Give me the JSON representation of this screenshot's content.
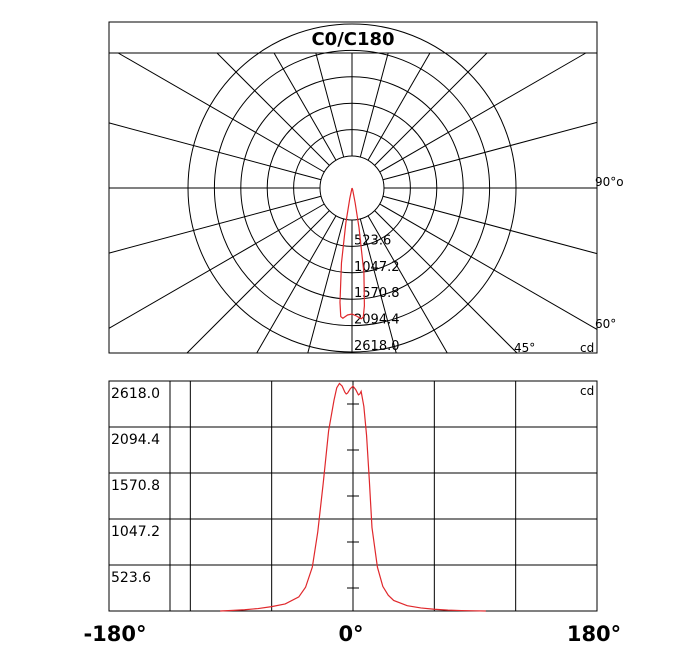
{
  "chart_data": [
    {
      "type": "polar",
      "title": "C0/C180",
      "unit": "cd",
      "radial_ticks": [
        523.6,
        1047.2,
        1570.8,
        2094.4,
        2618.0
      ],
      "radial_tick_labels": [
        "523.6",
        "1047.2",
        "1570.8",
        "2094.4",
        "2618.0"
      ],
      "rmax": 2618.0,
      "angle_labels": [
        "90°o",
        "60°",
        "45°"
      ],
      "angle_step_deg": 15,
      "series": [
        {
          "color": "#e0282c",
          "points": [
            {
              "angle": -12,
              "intensity": 210
            },
            {
              "angle": -10,
              "intensity": 700
            },
            {
              "angle": -8,
              "intensity": 1500
            },
            {
              "angle": -6,
              "intensity": 2280
            },
            {
              "angle": -5,
              "intensity": 2560
            },
            {
              "angle": -4,
              "intensity": 2590
            },
            {
              "angle": -2,
              "intensity": 2520
            },
            {
              "angle": 0,
              "intensity": 2500
            },
            {
              "angle": 2,
              "intensity": 2540
            },
            {
              "angle": 4,
              "intensity": 2600
            },
            {
              "angle": 5,
              "intensity": 2570
            },
            {
              "angle": 6,
              "intensity": 2350
            },
            {
              "angle": 8,
              "intensity": 1700
            },
            {
              "angle": 10,
              "intensity": 800
            },
            {
              "angle": 12,
              "intensity": 300
            },
            {
              "angle": 15,
              "intensity": 90
            },
            {
              "angle": 20,
              "intensity": 40
            },
            {
              "angle": 30,
              "intensity": 10
            }
          ]
        }
      ]
    },
    {
      "type": "line",
      "unit": "cd",
      "xlim": [
        -180,
        180
      ],
      "ylim": [
        0,
        2618.0
      ],
      "x_tick_labels": [
        "-180°",
        "0°",
        "180°"
      ],
      "y_tick_labels": [
        "523.6",
        "1047.2",
        "1570.8",
        "2094.4",
        "2618.0"
      ],
      "series": [
        {
          "color": "#e0282c",
          "x": [
            -98,
            -90,
            -80,
            -70,
            -60,
            -50,
            -40,
            -35,
            -30,
            -26,
            -22,
            -18,
            -14,
            -12,
            -10,
            -8,
            -6,
            -5,
            -4,
            -2,
            0,
            2,
            4,
            5,
            6,
            8,
            10,
            12,
            14,
            18,
            22,
            26,
            30,
            40,
            50,
            60,
            70,
            80,
            90,
            98
          ],
          "y": [
            0,
            6,
            14,
            28,
            50,
            80,
            160,
            270,
            500,
            900,
            1450,
            2050,
            2400,
            2540,
            2590,
            2560,
            2490,
            2470,
            2480,
            2530,
            2560,
            2520,
            2460,
            2470,
            2500,
            2330,
            2000,
            1500,
            950,
            500,
            280,
            180,
            120,
            60,
            35,
            20,
            10,
            5,
            2,
            0
          ]
        }
      ]
    }
  ]
}
